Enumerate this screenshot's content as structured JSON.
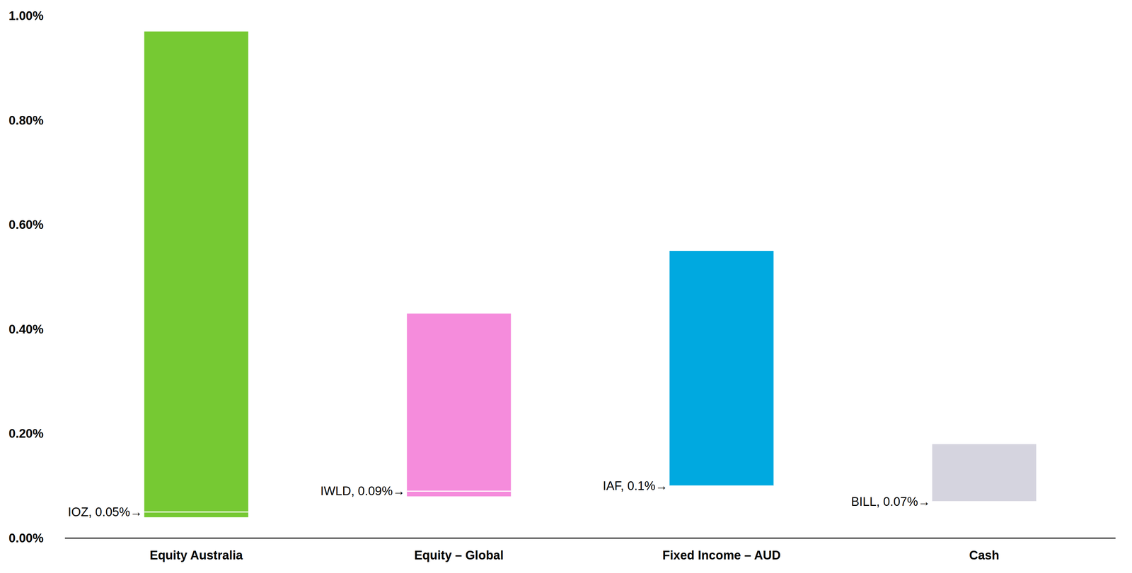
{
  "chart_data": {
    "type": "floating_bar",
    "categories": [
      "Equity Australia",
      "Equity – Global",
      "Fixed Income – AUD",
      "Cash"
    ],
    "low": [
      0.04,
      0.08,
      0.1,
      0.07
    ],
    "high": [
      0.97,
      0.43,
      0.55,
      0.18
    ],
    "colors": [
      "#76c933",
      "#f58cdc",
      "#00a9e0",
      "#d5d4df"
    ],
    "annotations": [
      {
        "label": "IOZ, 0.05%→",
        "value": 0.05
      },
      {
        "label": "IWLD, 0.09%→",
        "value": 0.09
      },
      {
        "label": "IAF, 0.1%→",
        "value": 0.1
      },
      {
        "label": "BILL, 0.07%→",
        "value": 0.07
      }
    ],
    "ylim": [
      0,
      1
    ],
    "yticks": [
      {
        "value": 0,
        "label": "0.00%"
      },
      {
        "value": 0.2,
        "label": "0.20%"
      },
      {
        "value": 0.4,
        "label": "0.40%"
      },
      {
        "value": 0.6,
        "label": "0.60%"
      },
      {
        "value": 0.8,
        "label": "0.80%"
      },
      {
        "value": 1,
        "label": "1.00%"
      }
    ],
    "grid": false
  }
}
